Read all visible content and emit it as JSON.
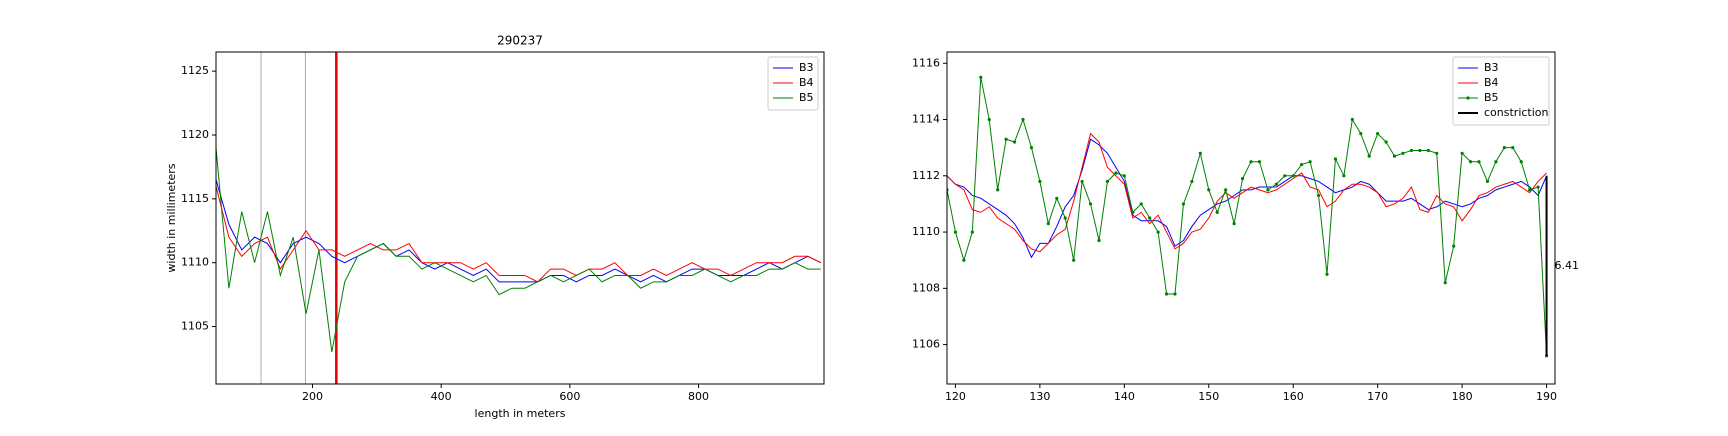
{
  "chart_data": [
    {
      "type": "line",
      "title": "290237",
      "xlabel": "length in meters",
      "ylabel": "width in millimeters",
      "xlim": [
        50,
        995
      ],
      "ylim": [
        1100.5,
        1126.5
      ],
      "xticks": [
        200,
        400,
        600,
        800
      ],
      "yticks": [
        1105,
        1110,
        1115,
        1120,
        1125
      ],
      "legend": "upper right",
      "vlines": [
        {
          "x": 120,
          "color": "#aaaaaa"
        },
        {
          "x": 189,
          "color": "#aaaaaa"
        },
        {
          "x": 237,
          "color": "#e00000"
        }
      ],
      "x": [
        50,
        70,
        90,
        110,
        130,
        150,
        170,
        190,
        210,
        230,
        250,
        270,
        290,
        310,
        330,
        350,
        370,
        390,
        410,
        430,
        450,
        470,
        490,
        510,
        530,
        550,
        570,
        590,
        610,
        630,
        650,
        670,
        690,
        710,
        730,
        750,
        770,
        790,
        810,
        830,
        850,
        870,
        890,
        910,
        930,
        950,
        970,
        990
      ],
      "series": [
        {
          "name": "B3",
          "color": "#0000ff",
          "values": [
            1116.5,
            1113,
            1111,
            1112,
            1111.5,
            1110,
            1111.5,
            1112,
            1111.5,
            1110.5,
            1110,
            1110.5,
            1111,
            1111.5,
            1110.5,
            1111,
            1110,
            1109.5,
            1110,
            1109.5,
            1109,
            1109.5,
            1108.5,
            1108.5,
            1108.5,
            1108.5,
            1109,
            1109,
            1108.5,
            1109,
            1109,
            1109.5,
            1109,
            1108.5,
            1109,
            1108.5,
            1109,
            1109.5,
            1109.5,
            1109,
            1109,
            1109,
            1109.5,
            1110,
            1109.5,
            1110,
            1110.5,
            1110
          ]
        },
        {
          "name": "B4",
          "color": "#ff0000",
          "values": [
            1116,
            1112,
            1110.5,
            1111.5,
            1112,
            1109.5,
            1111,
            1112.5,
            1111,
            1111,
            1110.5,
            1111,
            1111.5,
            1111,
            1111,
            1111.5,
            1110,
            1110,
            1110,
            1110,
            1109.5,
            1110,
            1109,
            1109,
            1109,
            1108.5,
            1109.5,
            1109.5,
            1109,
            1109.5,
            1109.5,
            1110,
            1109,
            1109,
            1109.5,
            1109,
            1109.5,
            1110,
            1109.5,
            1109.5,
            1109,
            1109.5,
            1110,
            1110,
            1110,
            1110.5,
            1110.5,
            1110
          ]
        },
        {
          "name": "B5",
          "color": "#008000",
          "values": [
            1119,
            1108,
            1114,
            1110,
            1114,
            1109,
            1112,
            1106,
            1111,
            1103,
            1108.5,
            1110.5,
            1111,
            1111.5,
            1110.5,
            1110.5,
            1109.5,
            1110,
            1109.5,
            1109,
            1108.5,
            1109,
            1107.5,
            1108,
            1108,
            1108.5,
            1109,
            1108.5,
            1109,
            1109.5,
            1108.5,
            1109,
            1109,
            1108,
            1108.5,
            1108.5,
            1109,
            1109,
            1109.5,
            1109,
            1108.5,
            1109,
            1109,
            1109.5,
            1109.5,
            1110,
            1109.5,
            1109.5
          ]
        }
      ]
    },
    {
      "type": "line",
      "xlim": [
        119,
        191
      ],
      "ylim": [
        1104.6,
        1116.4
      ],
      "xticks": [
        120,
        130,
        140,
        150,
        160,
        170,
        180,
        190
      ],
      "yticks": [
        1106,
        1108,
        1110,
        1112,
        1114,
        1116
      ],
      "legend": "upper right",
      "x": [
        119,
        120,
        121,
        122,
        123,
        124,
        125,
        126,
        127,
        128,
        129,
        130,
        131,
        132,
        133,
        134,
        135,
        136,
        137,
        138,
        139,
        140,
        141,
        142,
        143,
        144,
        145,
        146,
        147,
        148,
        149,
        150,
        151,
        152,
        153,
        154,
        155,
        156,
        157,
        158,
        159,
        160,
        161,
        162,
        163,
        164,
        165,
        166,
        167,
        168,
        169,
        170,
        171,
        172,
        173,
        174,
        175,
        176,
        177,
        178,
        179,
        180,
        181,
        182,
        183,
        184,
        185,
        186,
        187,
        188,
        189,
        190
      ],
      "series": [
        {
          "name": "B3",
          "color": "#0000ff",
          "values": [
            1112,
            1111.7,
            1111.6,
            1111.3,
            1111.2,
            1111,
            1110.8,
            1110.6,
            1110.3,
            1109.8,
            1109.1,
            1109.6,
            1109.6,
            1110.2,
            1110.9,
            1111.3,
            1112.2,
            1113.3,
            1113.1,
            1112.8,
            1112.3,
            1111.8,
            1110.6,
            1110.4,
            1110.4,
            1110.4,
            1110.2,
            1109.5,
            1109.7,
            1110.2,
            1110.6,
            1110.8,
            1111,
            1111.1,
            1111.3,
            1111.5,
            1111.5,
            1111.6,
            1111.6,
            1111.6,
            1111.8,
            1112,
            1112,
            1111.9,
            1111.8,
            1111.6,
            1111.4,
            1111.5,
            1111.6,
            1111.8,
            1111.7,
            1111.4,
            1111.1,
            1111.1,
            1111.1,
            1111.2,
            1111,
            1110.8,
            1110.9,
            1111.1,
            1111,
            1110.9,
            1111,
            1111.2,
            1111.3,
            1111.5,
            1111.6,
            1111.7,
            1111.8,
            1111.6,
            1111.3,
            1112
          ]
        },
        {
          "name": "B4",
          "color": "#ff0000",
          "values": [
            1112,
            1111.7,
            1111.5,
            1110.8,
            1110.7,
            1110.9,
            1110.5,
            1110.3,
            1110.1,
            1109.7,
            1109.4,
            1109.3,
            1109.6,
            1109.9,
            1110.1,
            1111.1,
            1112.3,
            1113.5,
            1113.2,
            1112.3,
            1112,
            1111.7,
            1110.5,
            1110.7,
            1110.3,
            1110.6,
            1110,
            1109.4,
            1109.6,
            1110,
            1110.1,
            1110.5,
            1111.1,
            1111.4,
            1111.2,
            1111.4,
            1111.6,
            1111.5,
            1111.4,
            1111.5,
            1111.7,
            1111.9,
            1112.1,
            1111.6,
            1111.5,
            1110.9,
            1111.1,
            1111.5,
            1111.7,
            1111.7,
            1111.6,
            1111.4,
            1110.9,
            1111,
            1111.2,
            1111.6,
            1110.8,
            1110.7,
            1111.3,
            1111,
            1110.9,
            1110.4,
            1110.8,
            1111.3,
            1111.4,
            1111.6,
            1111.7,
            1111.8,
            1111.6,
            1111.4,
            1111.8,
            1112.1
          ]
        },
        {
          "name": "B5",
          "color": "#008000",
          "marker": true,
          "values": [
            1111.5,
            1110,
            1109,
            1110,
            1115.5,
            1114,
            1111.5,
            1113.3,
            1113.2,
            1114,
            1113,
            1111.8,
            1110.3,
            1111.2,
            1110.5,
            1109,
            1111.8,
            1111,
            1109.7,
            1111.8,
            1112.1,
            1112,
            1110.7,
            1111,
            1110.5,
            1110,
            1107.8,
            1107.8,
            1111,
            1111.8,
            1112.8,
            1111.5,
            1110.7,
            1111.5,
            1110.3,
            1111.9,
            1112.5,
            1112.5,
            1111.5,
            1111.7,
            1112,
            1112,
            1112.4,
            1112.5,
            1111.3,
            1108.5,
            1112.6,
            1112,
            1114,
            1113.5,
            1112.7,
            1113.5,
            1113.2,
            1112.7,
            1112.8,
            1112.9,
            1112.9,
            1112.9,
            1112.8,
            1108.2,
            1109.5,
            1112.8,
            1112.5,
            1112.5,
            1111.8,
            1112.5,
            1113,
            1113,
            1112.5,
            1111.5,
            1111.6,
            1105.6
          ]
        },
        {
          "name": "constriction",
          "color": "#000000",
          "width": 2,
          "x": [
            190,
            190
          ],
          "values": [
            1105.6,
            1112
          ],
          "annotation": "6.41"
        }
      ]
    }
  ]
}
